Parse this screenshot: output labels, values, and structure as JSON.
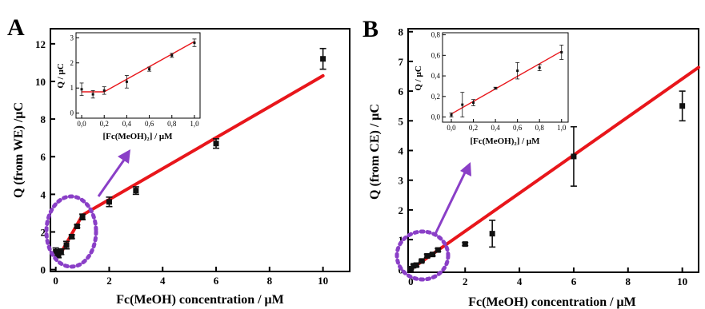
{
  "colors": {
    "fit": "#e8161b",
    "marker": "#111111",
    "annotation": "#8a3fc7"
  },
  "chart_data": [
    {
      "type": "scatter",
      "panel": "A",
      "xlabel": "Fc(MeOH) concentration / μM",
      "ylabel": "Q (from WE) /μC",
      "xlim": [
        -0.2,
        11
      ],
      "ylim": [
        -0.1,
        12.8
      ],
      "xticks": [
        0,
        2,
        4,
        6,
        8,
        10
      ],
      "yticks": [
        0,
        2,
        4,
        6,
        8,
        10,
        12
      ],
      "grid": false,
      "series": [
        {
          "x": [
            0,
            0.1,
            0.2,
            0.4,
            0.6,
            0.8,
            1,
            2,
            3,
            6,
            10
          ],
          "y": [
            0.95,
            0.75,
            0.95,
            1.3,
            1.75,
            2.3,
            2.8,
            3.6,
            4.2,
            6.7,
            11.2
          ],
          "yerr": [
            0.2,
            0.12,
            0.15,
            0.2,
            0.1,
            0.08,
            0.15,
            0.25,
            0.2,
            0.25,
            0.55
          ]
        }
      ],
      "fit": [
        {
          "x": [
            0,
            0.2
          ],
          "y": [
            0.9,
            0.9
          ]
        },
        {
          "x": [
            0.2,
            1,
            10
          ],
          "y": [
            0.9,
            2.9,
            10.3
          ]
        }
      ],
      "inset": {
        "xlabel": "[Fc(MeOH)₂] / μM",
        "ylabel": "Q / μC",
        "xlim": [
          -0.05,
          1.05
        ],
        "ylim": [
          -0.2,
          3.2
        ],
        "xticks": [
          "0,0",
          "0,2",
          "0,4",
          "0,6",
          "0,8",
          "1,0"
        ],
        "xtick_values": [
          0,
          0.2,
          0.4,
          0.6,
          0.8,
          1.0
        ],
        "yticks": [
          "0",
          "1",
          "2",
          "3"
        ],
        "ytick_values": [
          0,
          1,
          2,
          3
        ],
        "series": [
          {
            "x": [
              0,
              0.1,
              0.2,
              0.4,
              0.6,
              0.8,
              1.0
            ],
            "y": [
              0.95,
              0.75,
              0.9,
              1.25,
              1.75,
              2.3,
              2.8
            ],
            "yerr": [
              0.25,
              0.15,
              0.15,
              0.25,
              0.08,
              0.08,
              0.15
            ]
          }
        ],
        "fit": [
          {
            "x": [
              0,
              0.2
            ],
            "y": [
              0.85,
              0.85
            ]
          },
          {
            "x": [
              0.2,
              1.0
            ],
            "y": [
              0.85,
              2.85
            ]
          }
        ]
      }
    },
    {
      "type": "scatter",
      "panel": "B",
      "xlabel": "Fc(MeOH) concentration / μM",
      "ylabel": "Q (from CE) / μC",
      "xlim": [
        -0.1,
        10.6
      ],
      "ylim": [
        -0.1,
        8.1
      ],
      "xticks": [
        0,
        2,
        4,
        6,
        8,
        10
      ],
      "yticks": [
        0,
        1,
        2,
        3,
        4,
        5,
        6,
        7,
        8
      ],
      "grid": false,
      "series": [
        {
          "x": [
            0,
            0.1,
            0.2,
            0.4,
            0.6,
            0.8,
            1,
            2,
            3,
            6,
            10
          ],
          "y": [
            0.02,
            0.12,
            0.14,
            0.28,
            0.45,
            0.5,
            0.65,
            0.85,
            1.2,
            3.8,
            5.5
          ],
          "yerr": [
            0.02,
            0.05,
            0.05,
            0.03,
            0.06,
            0.05,
            0.05,
            0.05,
            0.45,
            1.0,
            0.5
          ]
        }
      ],
      "fit": [
        {
          "x": [
            0,
            10.6
          ],
          "y": [
            0,
            6.8
          ]
        }
      ],
      "inset": {
        "xlabel": "[Fc(MeOH)₂] / μM",
        "ylabel": "Q / μC",
        "xlim": [
          -0.08,
          1.06
        ],
        "ylim": [
          -0.05,
          0.82
        ],
        "xticks": [
          "0,0",
          "0,2",
          "0,4",
          "0,6",
          "0,8",
          "1,0"
        ],
        "xtick_values": [
          0,
          0.2,
          0.4,
          0.6,
          0.8,
          1.0
        ],
        "yticks": [
          "0,0",
          "0,2",
          "0,4",
          "0,6",
          "0,8"
        ],
        "ytick_values": [
          0,
          0.2,
          0.4,
          0.6,
          0.8
        ],
        "series": [
          {
            "x": [
              0,
              0.1,
              0.2,
              0.4,
              0.6,
              0.8,
              1.0
            ],
            "y": [
              0.02,
              0.12,
              0.14,
              0.28,
              0.45,
              0.48,
              0.63
            ],
            "yerr": [
              0.02,
              0.12,
              0.03,
              0.01,
              0.08,
              0.03,
              0.07
            ]
          }
        ],
        "fit": [
          {
            "x": [
              0,
              1.0
            ],
            "y": [
              0.03,
              0.64
            ]
          }
        ]
      }
    }
  ]
}
